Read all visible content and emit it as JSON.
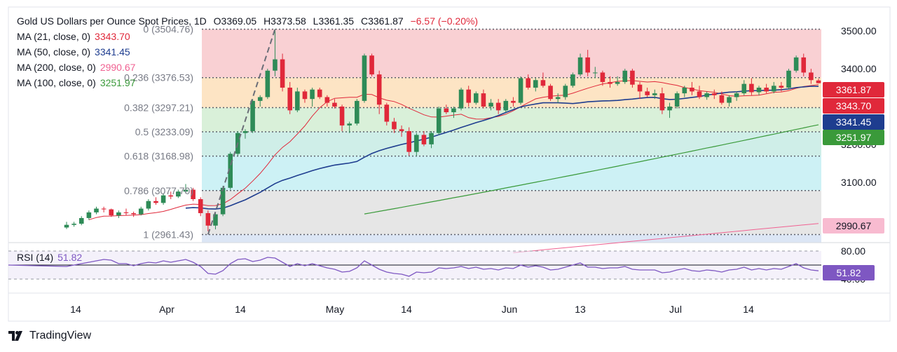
{
  "header": {
    "title": "Gold US Dollars per Ounce Spot Prices, 1D",
    "open": "O3369.05",
    "high": "H3373.58",
    "low": "L3361.35",
    "close": "C3361.87",
    "change": "−6.57 (−0.20%)"
  },
  "legend": [
    {
      "label": "MA (21, close, 0)",
      "value": "3343.70",
      "color": "#e0283a"
    },
    {
      "label": "MA (50, close, 0)",
      "value": "3341.45",
      "color": "#1e3d8f"
    },
    {
      "label": "MA (200, close, 0)",
      "value": "2990.67",
      "color": "#f06292"
    },
    {
      "label": "MA (100, close, 0)",
      "value": "3251.97",
      "color": "#3a9a3a"
    }
  ],
  "rsi": {
    "label": "RSI (14)",
    "value": "51.82",
    "color": "#7e57c2"
  },
  "branding": {
    "name": "TradingView"
  },
  "colors": {
    "up": "#2e8b57",
    "down": "#e0283a",
    "grid": "#e9ecf1"
  },
  "chart_data": {
    "type": "candlestick",
    "y_ticks": [
      "3500.00",
      "3400.00",
      "3300.00",
      "3200.00",
      "3100.00"
    ],
    "ylim": [
      2940,
      3530
    ],
    "x_ticks": [
      "14",
      "Apr",
      "14",
      "May",
      "14",
      "Jun",
      "13",
      "Jul",
      "14"
    ],
    "price_labels": [
      {
        "text": "3361.87",
        "value": 3361.87,
        "color": "#e0283a"
      },
      {
        "text": "3343.70",
        "value": 3343.7,
        "color": "#e0283a"
      },
      {
        "text": "3341.45",
        "value": 3341.45,
        "color": "#1e3d8f"
      },
      {
        "text": "3251.97",
        "value": 3251.97,
        "color": "#3a9a3a"
      },
      {
        "text": "2990.67",
        "value": 2990.67,
        "color": "#f8bbd0"
      }
    ],
    "fibonacci": [
      {
        "label": "0 (3504.76)",
        "value": 3504.76
      },
      {
        "label": "0.236 (3376.53)",
        "value": 3376.53
      },
      {
        "label": "0.382 (3297.21)",
        "value": 3297.21
      },
      {
        "label": "0.5 (3233.09)",
        "value": 3233.09
      },
      {
        "label": "0.618 (3168.98)",
        "value": 3168.98
      },
      {
        "label": "0.786 (3077.70)",
        "value": 3077.7
      },
      {
        "label": "1 (2961.43)",
        "value": 2961.43
      }
    ],
    "fib_band_colors": [
      "#f9d0d3",
      "#fde4c4",
      "#d9f0d9",
      "#cfeee8",
      "#cdf1f5",
      "#e6e6e6"
    ],
    "candles": [
      [
        2980,
        2995,
        2976,
        2987
      ],
      [
        2987,
        2995,
        2982,
        2990
      ],
      [
        2990,
        3010,
        2986,
        3005
      ],
      [
        3005,
        3025,
        3000,
        3020
      ],
      [
        3020,
        3035,
        3015,
        3030
      ],
      [
        3030,
        3035,
        3020,
        3028
      ],
      [
        3028,
        3030,
        3008,
        3012
      ],
      [
        3012,
        3025,
        3005,
        3020
      ],
      [
        3020,
        3030,
        3012,
        3018
      ],
      [
        3018,
        3022,
        3008,
        3015
      ],
      [
        3015,
        3035,
        3012,
        3030
      ],
      [
        3030,
        3055,
        3025,
        3050
      ],
      [
        3050,
        3060,
        3040,
        3045
      ],
      [
        3045,
        3070,
        3040,
        3065
      ],
      [
        3065,
        3075,
        3055,
        3062
      ],
      [
        3062,
        3080,
        3058,
        3075
      ],
      [
        3075,
        3095,
        3070,
        3080
      ],
      [
        3080,
        3085,
        3050,
        3055
      ],
      [
        3055,
        3060,
        3010,
        3018
      ],
      [
        3018,
        3025,
        2970,
        2985
      ],
      [
        2985,
        3020,
        2975,
        3015
      ],
      [
        3015,
        3090,
        3010,
        3085
      ],
      [
        3085,
        3180,
        3080,
        3175
      ],
      [
        3175,
        3235,
        3170,
        3230
      ],
      [
        3230,
        3240,
        3215,
        3235
      ],
      [
        3235,
        3320,
        3230,
        3315
      ],
      [
        3315,
        3330,
        3300,
        3325
      ],
      [
        3325,
        3400,
        3320,
        3395
      ],
      [
        3395,
        3505,
        3380,
        3425
      ],
      [
        3425,
        3440,
        3340,
        3350
      ],
      [
        3350,
        3365,
        3280,
        3290
      ],
      [
        3290,
        3350,
        3285,
        3340
      ],
      [
        3340,
        3345,
        3310,
        3320
      ],
      [
        3320,
        3350,
        3300,
        3345
      ],
      [
        3345,
        3350,
        3320,
        3325
      ],
      [
        3325,
        3330,
        3300,
        3310
      ],
      [
        3310,
        3320,
        3295,
        3300
      ],
      [
        3300,
        3305,
        3235,
        3250
      ],
      [
        3250,
        3260,
        3230,
        3255
      ],
      [
        3255,
        3320,
        3250,
        3315
      ],
      [
        3315,
        3440,
        3310,
        3435
      ],
      [
        3435,
        3440,
        3380,
        3385
      ],
      [
        3385,
        3395,
        3280,
        3305
      ],
      [
        3305,
        3310,
        3250,
        3260
      ],
      [
        3260,
        3270,
        3230,
        3240
      ],
      [
        3240,
        3250,
        3220,
        3235
      ],
      [
        3235,
        3245,
        3170,
        3180
      ],
      [
        3180,
        3230,
        3170,
        3225
      ],
      [
        3225,
        3235,
        3195,
        3200
      ],
      [
        3200,
        3235,
        3190,
        3230
      ],
      [
        3230,
        3300,
        3225,
        3295
      ],
      [
        3295,
        3305,
        3280,
        3285
      ],
      [
        3285,
        3300,
        3270,
        3295
      ],
      [
        3295,
        3350,
        3290,
        3345
      ],
      [
        3345,
        3355,
        3300,
        3310
      ],
      [
        3310,
        3340,
        3305,
        3335
      ],
      [
        3335,
        3345,
        3295,
        3300
      ],
      [
        3300,
        3320,
        3290,
        3310
      ],
      [
        3310,
        3320,
        3280,
        3290
      ],
      [
        3290,
        3320,
        3285,
        3315
      ],
      [
        3315,
        3325,
        3300,
        3310
      ],
      [
        3310,
        3380,
        3305,
        3375
      ],
      [
        3375,
        3385,
        3345,
        3350
      ],
      [
        3350,
        3375,
        3340,
        3370
      ],
      [
        3370,
        3390,
        3350,
        3355
      ],
      [
        3355,
        3360,
        3315,
        3320
      ],
      [
        3320,
        3335,
        3310,
        3325
      ],
      [
        3325,
        3360,
        3318,
        3355
      ],
      [
        3355,
        3390,
        3350,
        3385
      ],
      [
        3385,
        3440,
        3380,
        3430
      ],
      [
        3430,
        3450,
        3380,
        3390
      ],
      [
        3390,
        3405,
        3375,
        3390
      ],
      [
        3390,
        3395,
        3355,
        3365
      ],
      [
        3365,
        3380,
        3350,
        3360
      ],
      [
        3360,
        3380,
        3355,
        3365
      ],
      [
        3365,
        3400,
        3360,
        3395
      ],
      [
        3395,
        3400,
        3350,
        3358
      ],
      [
        3358,
        3365,
        3320,
        3340
      ],
      [
        3340,
        3350,
        3325,
        3330
      ],
      [
        3330,
        3345,
        3320,
        3335
      ],
      [
        3335,
        3350,
        3280,
        3290
      ],
      [
        3290,
        3310,
        3270,
        3300
      ],
      [
        3300,
        3340,
        3295,
        3335
      ],
      [
        3335,
        3355,
        3325,
        3350
      ],
      [
        3350,
        3365,
        3330,
        3340
      ],
      [
        3340,
        3355,
        3320,
        3325
      ],
      [
        3325,
        3340,
        3318,
        3335
      ],
      [
        3335,
        3345,
        3320,
        3330
      ],
      [
        3330,
        3340,
        3305,
        3310
      ],
      [
        3310,
        3330,
        3300,
        3325
      ],
      [
        3325,
        3340,
        3315,
        3335
      ],
      [
        3335,
        3370,
        3330,
        3360
      ],
      [
        3360,
        3375,
        3330,
        3338
      ],
      [
        3338,
        3355,
        3330,
        3350
      ],
      [
        3350,
        3360,
        3335,
        3340
      ],
      [
        3340,
        3365,
        3335,
        3355
      ],
      [
        3355,
        3365,
        3340,
        3350
      ],
      [
        3350,
        3400,
        3345,
        3395
      ],
      [
        3395,
        3435,
        3390,
        3430
      ],
      [
        3430,
        3440,
        3380,
        3390
      ],
      [
        3390,
        3400,
        3360,
        3370
      ],
      [
        3369.05,
        3373.58,
        3361.35,
        3361.87
      ]
    ],
    "rsi_ylim": [
      20,
      90
    ],
    "rsi_levels": [
      {
        "text": "80.00",
        "value": 80
      },
      {
        "text": "40.00",
        "value": 40
      }
    ],
    "rsi_values": [
      58,
      60,
      62,
      64,
      66,
      68,
      67,
      62,
      62,
      59,
      62,
      64,
      63,
      66,
      64,
      66,
      68,
      64,
      58,
      48,
      47,
      52,
      62,
      68,
      69,
      65,
      67,
      71,
      70,
      64,
      58,
      62,
      59,
      62,
      59,
      56,
      54,
      50,
      51,
      56,
      66,
      60,
      54,
      50,
      48,
      47,
      44,
      50,
      49,
      50,
      56,
      55,
      56,
      58,
      55,
      57,
      54,
      55,
      53,
      56,
      55,
      60,
      57,
      59,
      57,
      53,
      54,
      57,
      60,
      63,
      57,
      57,
      55,
      56,
      56,
      58,
      54,
      53,
      53,
      53,
      49,
      50,
      53,
      55,
      52,
      51,
      53,
      52,
      50,
      53,
      54,
      57,
      53,
      55,
      53,
      55,
      54,
      58,
      62,
      56,
      53,
      51.82
    ]
  }
}
